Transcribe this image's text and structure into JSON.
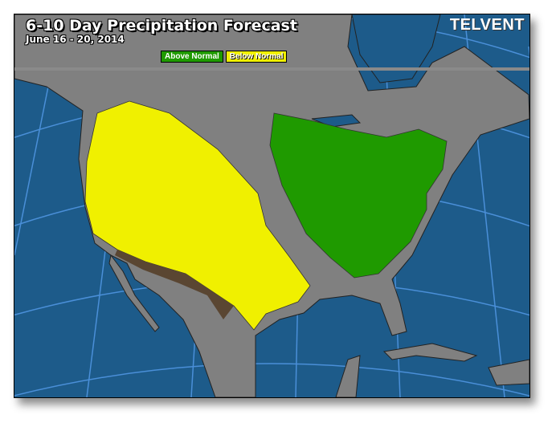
{
  "header": {
    "title": "6-10 Day Precipitation Forecast",
    "date_range": "June 16 - 20, 2014",
    "logo_text": "TELVENT"
  },
  "legend": [
    {
      "label": "Above Normal",
      "color": "#1f9a00"
    },
    {
      "label": "Below Normal",
      "color": "#f0f000"
    }
  ],
  "colors": {
    "ocean": "#1d5b8a",
    "land": "#808080",
    "graticule": "#4a8fd8",
    "above_normal": "#1f9a00",
    "below_normal": "#f0f000"
  }
}
